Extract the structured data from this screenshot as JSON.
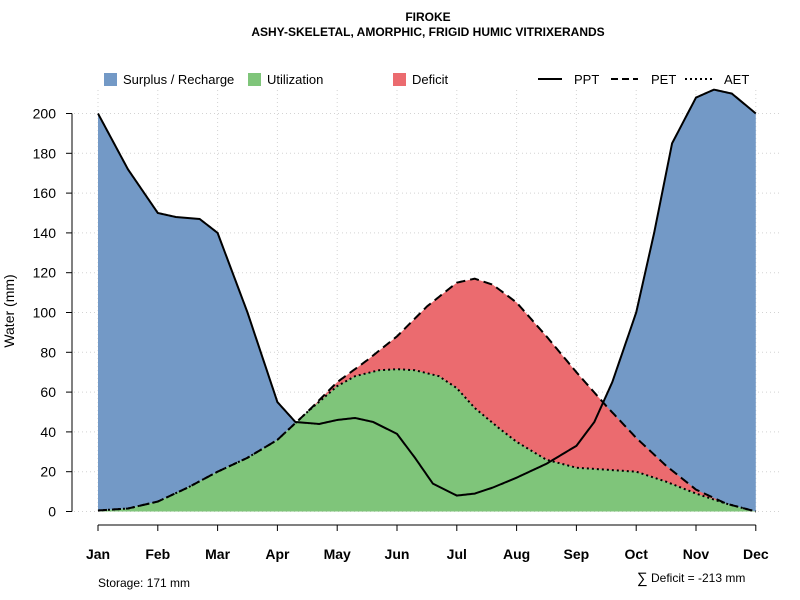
{
  "chart_data": {
    "type": "area",
    "title": "FIROKE",
    "subtitle": "ASHY-SKELETAL, AMORPHIC, FRIGID HUMIC VITRIXERANDS",
    "xlabel": "",
    "ylabel": "Water (mm)",
    "ylim": [
      0,
      212
    ],
    "yticks": [
      0,
      20,
      40,
      60,
      80,
      100,
      120,
      140,
      160,
      180,
      200
    ],
    "categories": [
      "Jan",
      "Feb",
      "Mar",
      "Apr",
      "May",
      "Jun",
      "Jul",
      "Aug",
      "Sep",
      "Oct",
      "Nov",
      "Dec"
    ],
    "grid": true,
    "legend_position": "top",
    "areas": [
      {
        "name": "Surplus / Recharge",
        "color": "#7399C6"
      },
      {
        "name": "Utilization",
        "color": "#7FC57A"
      },
      {
        "name": "Deficit",
        "color": "#EB6B6F"
      }
    ],
    "series": [
      {
        "name": "PPT",
        "style": "solid",
        "x": [
          0,
          0.5,
          1,
          1.3,
          1.7,
          2,
          2.5,
          3,
          3.3,
          3.7,
          4,
          4.3,
          4.6,
          5,
          5.3,
          5.6,
          6,
          6.3,
          6.6,
          7,
          7.5,
          8,
          8.3,
          8.6,
          9,
          9.3,
          9.6,
          10,
          10.3,
          10.6,
          11
        ],
        "values": [
          200,
          172,
          150,
          148,
          147,
          140,
          100,
          55,
          45,
          44,
          46,
          47,
          45,
          39,
          27,
          14,
          8,
          9,
          12,
          17,
          24,
          33,
          45,
          65,
          100,
          140,
          185,
          208,
          212,
          210,
          200
        ]
      },
      {
        "name": "PET",
        "style": "dashed",
        "x": [
          0,
          0.5,
          1,
          1.5,
          2,
          2.5,
          3,
          3.5,
          4,
          4.5,
          5,
          5.5,
          6,
          6.3,
          6.6,
          7,
          7.5,
          8,
          8.5,
          9,
          9.5,
          10,
          10.5,
          11
        ],
        "values": [
          0.5,
          1.5,
          5,
          12,
          20,
          27,
          36,
          50,
          65,
          76,
          88,
          103,
          115,
          117,
          114,
          105,
          88,
          70,
          53,
          37,
          23,
          11,
          4,
          0
        ]
      },
      {
        "name": "AET",
        "style": "dotted",
        "x": [
          0,
          0.5,
          1,
          1.5,
          2,
          2.5,
          3,
          3.5,
          4,
          4.3,
          4.7,
          5,
          5.3,
          5.7,
          6,
          6.3,
          6.7,
          7,
          7.5,
          8,
          8.5,
          9,
          9.5,
          10,
          10.5,
          11
        ],
        "values": [
          0.5,
          1.5,
          5,
          12,
          20,
          27,
          36,
          50,
          63,
          68,
          71,
          71.5,
          71,
          68,
          62,
          52,
          42,
          35,
          26,
          22,
          21,
          20,
          15,
          9,
          4,
          0
        ]
      }
    ]
  },
  "footer": {
    "storage_label": "Storage: 171 mm",
    "deficit_symbol": "∑",
    "deficit_label": "Deficit = -213 mm"
  }
}
